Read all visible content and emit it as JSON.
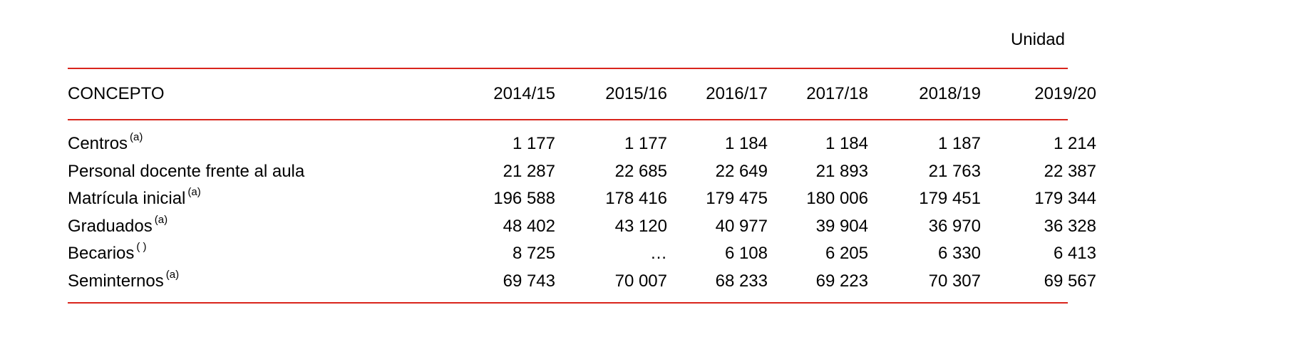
{
  "unit_label": "Unidad",
  "table": {
    "header": {
      "concept": "CONCEPTO",
      "years": [
        "2014/15",
        "2015/16",
        "2016/17",
        "2017/18",
        "2018/19",
        "2019/20"
      ]
    },
    "rows": [
      {
        "label": "Centros",
        "note": "(a)",
        "values": [
          "1 177",
          "1 177",
          "1 184",
          "1 184",
          "1 187",
          "1 214"
        ]
      },
      {
        "label": "Personal docente frente al aula",
        "note": "",
        "values": [
          "21 287",
          "22 685",
          "22 649",
          "21 893",
          "21 763",
          "22 387"
        ]
      },
      {
        "label": "Matrícula inicial",
        "note": "(a)",
        "values": [
          "196 588",
          "178 416",
          "179 475",
          "180 006",
          "179 451",
          "179 344"
        ]
      },
      {
        "label": "Graduados",
        "note": "(a)",
        "values": [
          "48 402",
          "43 120",
          "40 977",
          "39 904",
          "36 970",
          "36 328"
        ]
      },
      {
        "label": "Becarios",
        "note": "( )",
        "values": [
          "8 725",
          "…",
          "6 108",
          "6 205",
          "6 330",
          "6 413"
        ]
      },
      {
        "label": "Seminternos",
        "note": "(a)",
        "values": [
          "69 743",
          "70 007",
          "68 233",
          "69 223",
          "70 307",
          "69 567"
        ]
      }
    ]
  },
  "colors": {
    "rule": "#d9251c",
    "text": "#000000"
  }
}
